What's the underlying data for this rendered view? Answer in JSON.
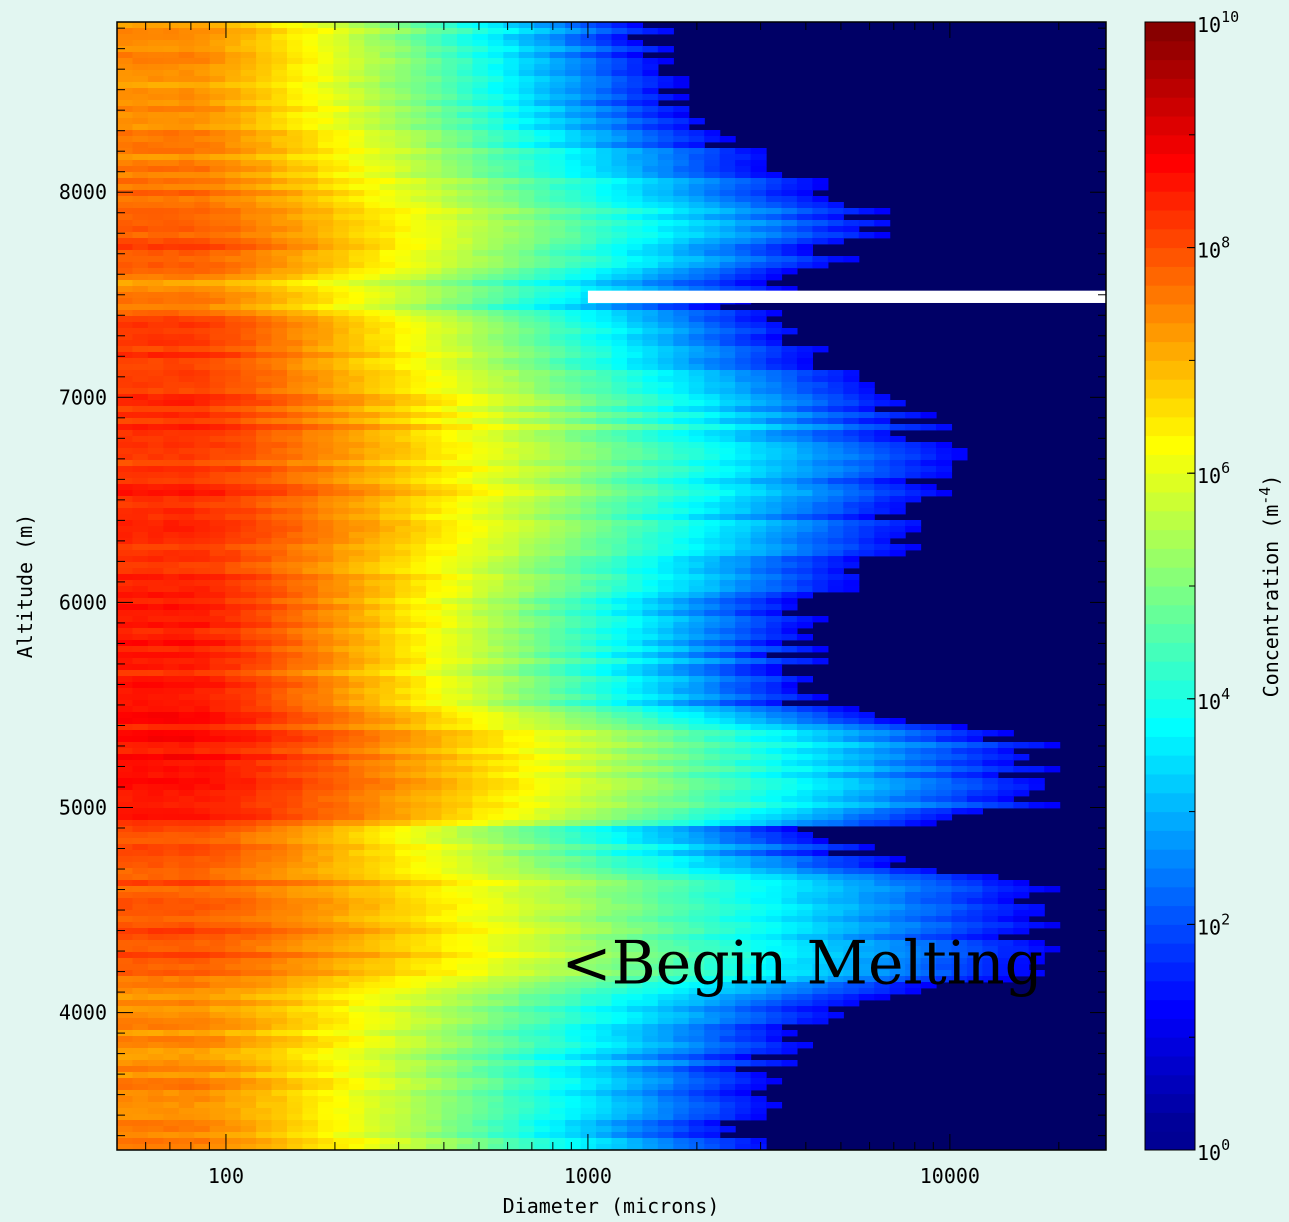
{
  "chart_data": {
    "type": "heatmap",
    "title": "",
    "xlabel": "Diameter (microns)",
    "ylabel": "Altitude (m)",
    "x_scale": "log",
    "xlim": [
      50,
      27000
    ],
    "ylim": [
      3330,
      8830
    ],
    "x_ticks": [
      {
        "value": 100,
        "label": "100"
      },
      {
        "value": 1000,
        "label": "1000"
      },
      {
        "value": 10000,
        "label": "10000"
      }
    ],
    "y_ticks": [
      {
        "value": 4000,
        "label": "4000"
      },
      {
        "value": 5000,
        "label": "5000"
      },
      {
        "value": 6000,
        "label": "6000"
      },
      {
        "value": 7000,
        "label": "7000"
      },
      {
        "value": 8000,
        "label": "8000"
      }
    ],
    "colorbar": {
      "label": "Concentration (m",
      "label_exponent": "-4",
      "label_close": ")",
      "scale": "log",
      "range": [
        1,
        10000000000
      ],
      "ticks": [
        {
          "base": "10",
          "exp": "0"
        },
        {
          "base": "10",
          "exp": "2"
        },
        {
          "base": "10",
          "exp": "4"
        },
        {
          "base": "10",
          "exp": "6"
        },
        {
          "base": "10",
          "exp": "8"
        },
        {
          "base": "10",
          "exp": "10"
        }
      ]
    },
    "annotations": [
      {
        "text": "<Begin Melting",
        "altitude": 4200,
        "diameter": 900
      }
    ],
    "data_gap": {
      "altitude_range": [
        7460,
        7520
      ],
      "diameter_min": 1000
    },
    "profile": {
      "altitude": [
        3350,
        3700,
        3950,
        4100,
        4200,
        4400,
        4620,
        4750,
        4900,
        5000,
        5200,
        5300,
        5500,
        5700,
        5900,
        6100,
        6300,
        6500,
        6700,
        6900,
        7100,
        7300,
        7450,
        7550,
        7700,
        7900,
        8100,
        8300,
        8500,
        8700,
        8830
      ],
      "peak_log_conc": [
        7.5,
        7.4,
        7.3,
        7.4,
        7.9,
        8.0,
        7.9,
        8.0,
        8.2,
        8.7,
        8.5,
        8.6,
        8.5,
        8.4,
        8.6,
        8.3,
        8.3,
        8.4,
        8.2,
        8.3,
        8.1,
        8.3,
        7.6,
        7.3,
        8.0,
        7.8,
        7.5,
        7.4,
        7.3,
        7.4,
        7.3
      ],
      "max_diameter": [
        2800,
        3000,
        4000,
        7000,
        17000,
        17000,
        17000,
        6000,
        4500,
        17000,
        17000,
        17000,
        4000,
        4000,
        3500,
        5500,
        7000,
        8000,
        10000,
        8000,
        5000,
        3800,
        2500,
        3500,
        5000,
        6500,
        3200,
        2000,
        1600,
        1500,
        1500
      ]
    }
  }
}
